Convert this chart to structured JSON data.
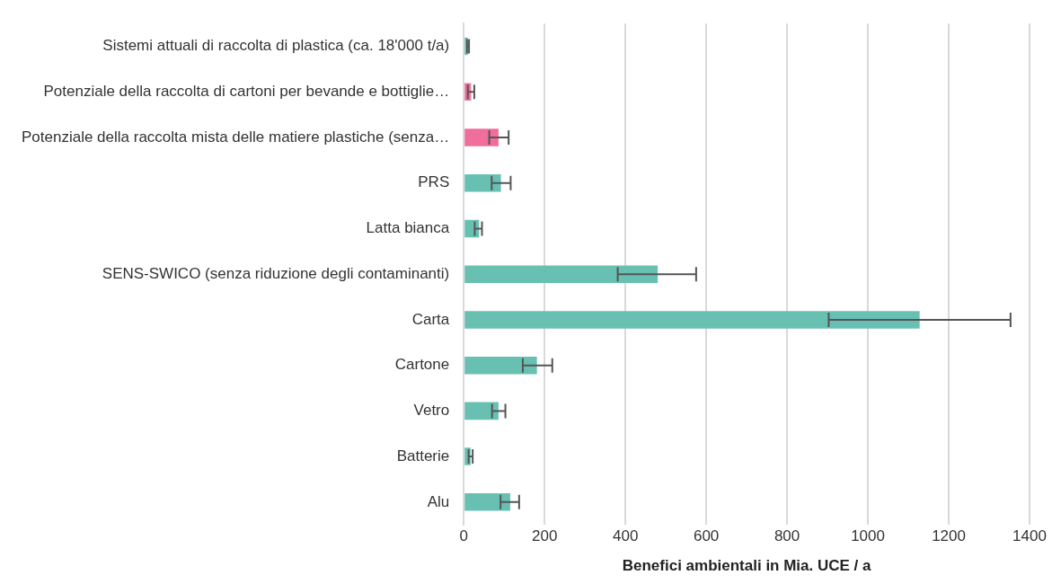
{
  "chart_data": {
    "type": "bar",
    "orientation": "horizontal",
    "xlabel": "Benefici ambientali in Mia. UCE / a",
    "categories": [
      "Sistemi attuali di raccolta di plastica (ca. 18'000 t/a)",
      "Potenziale della raccolta di cartoni per bevande e bottiglie…",
      "Potenziale della raccolta mista delle matiere plastiche (senza…",
      "PRS",
      "Latta bianca",
      "SENS-SWICO (senza riduzione degli contaminanti)",
      "Carta",
      "Cartone",
      "Vetro",
      "Batterie",
      "Alu"
    ],
    "values": [
      10,
      18,
      86,
      92,
      38,
      480,
      1128,
      181,
      86,
      17,
      115
    ],
    "colors": [
      "#68c0b3",
      "#f06e9c",
      "#f06e9c",
      "#68c0b3",
      "#68c0b3",
      "#68c0b3",
      "#68c0b3",
      "#68c0b3",
      "#68c0b3",
      "#68c0b3",
      "#68c0b3"
    ],
    "errors": [
      [
        8,
        13
      ],
      [
        10,
        26
      ],
      [
        63,
        111
      ],
      [
        69,
        116
      ],
      [
        27,
        45
      ],
      [
        381,
        575
      ],
      [
        903,
        1353
      ],
      [
        146,
        219
      ],
      [
        70,
        103
      ],
      [
        12,
        22
      ],
      [
        91,
        137
      ]
    ],
    "xlim": [
      0,
      1400
    ],
    "xticks": [
      0,
      200,
      400,
      600,
      800,
      1000,
      1200,
      1400
    ],
    "grid": "x",
    "legend": false
  }
}
